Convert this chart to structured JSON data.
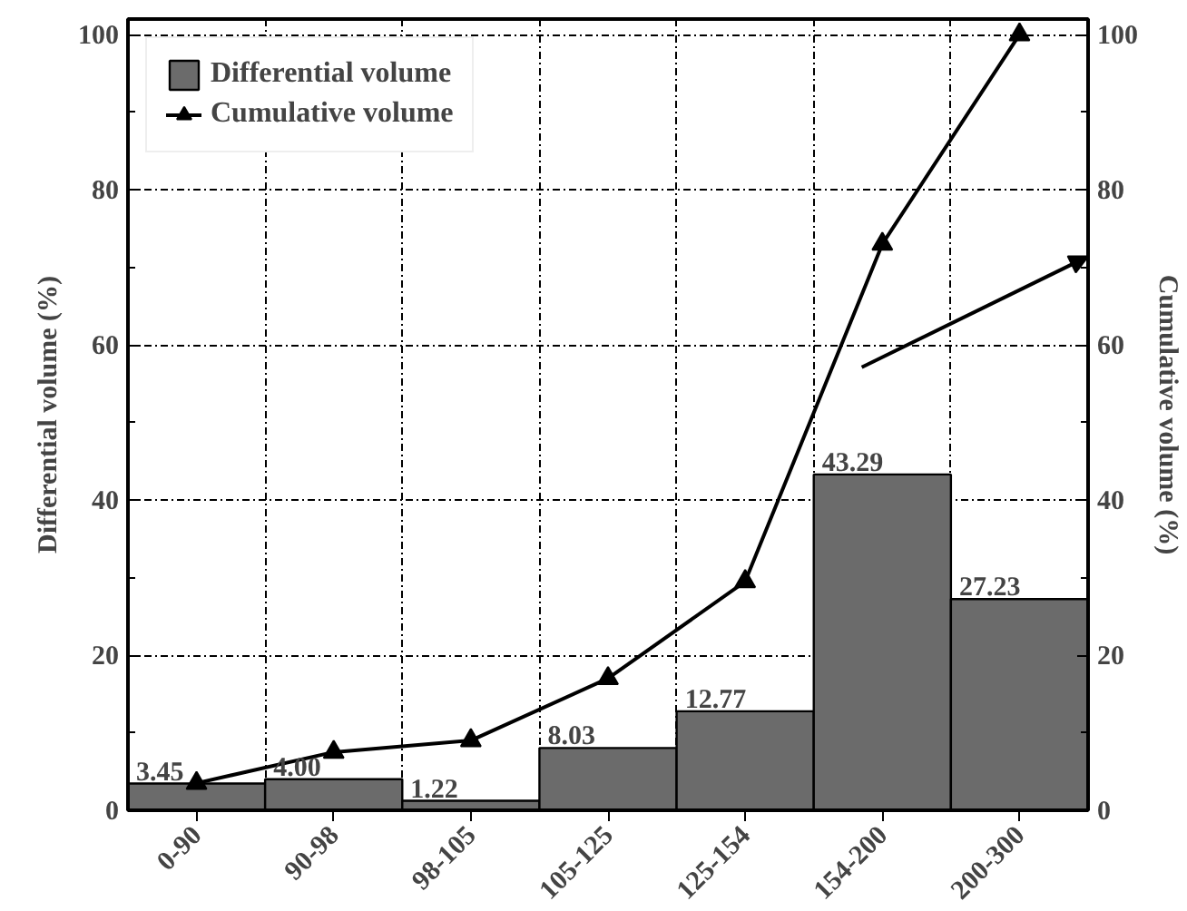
{
  "chart_data": {
    "type": "bar",
    "categories": [
      "0-90",
      "90-98",
      "98-105",
      "105-125",
      "125-154",
      "154-200",
      "200-300"
    ],
    "ylabel": "Differential volume (%)",
    "y2label": "Cumulative volume (%)",
    "ylim": [
      0,
      102
    ],
    "yticks": [
      0,
      20,
      40,
      60,
      80,
      100
    ],
    "y2lim": [
      0,
      102
    ],
    "y2ticks": [
      0,
      20,
      40,
      60,
      80,
      100
    ],
    "grid": true,
    "legend": "top left",
    "series": [
      {
        "name": "Differential volume",
        "color": "#6b6b6b",
        "values": [
          3.45,
          4.0,
          1.22,
          8.03,
          12.77,
          43.29,
          27.23
        ],
        "value_labels": [
          "3.45",
          "4.00",
          "1.22",
          "8.03",
          "12.77",
          "43.29",
          "27.23"
        ]
      },
      {
        "name": "Cumulative volume",
        "type": "line",
        "axis": "y2",
        "marker": "triangle",
        "color": "#000000",
        "values": [
          3.5,
          7.5,
          9,
          17,
          29.5,
          73,
          100
        ]
      }
    ]
  }
}
